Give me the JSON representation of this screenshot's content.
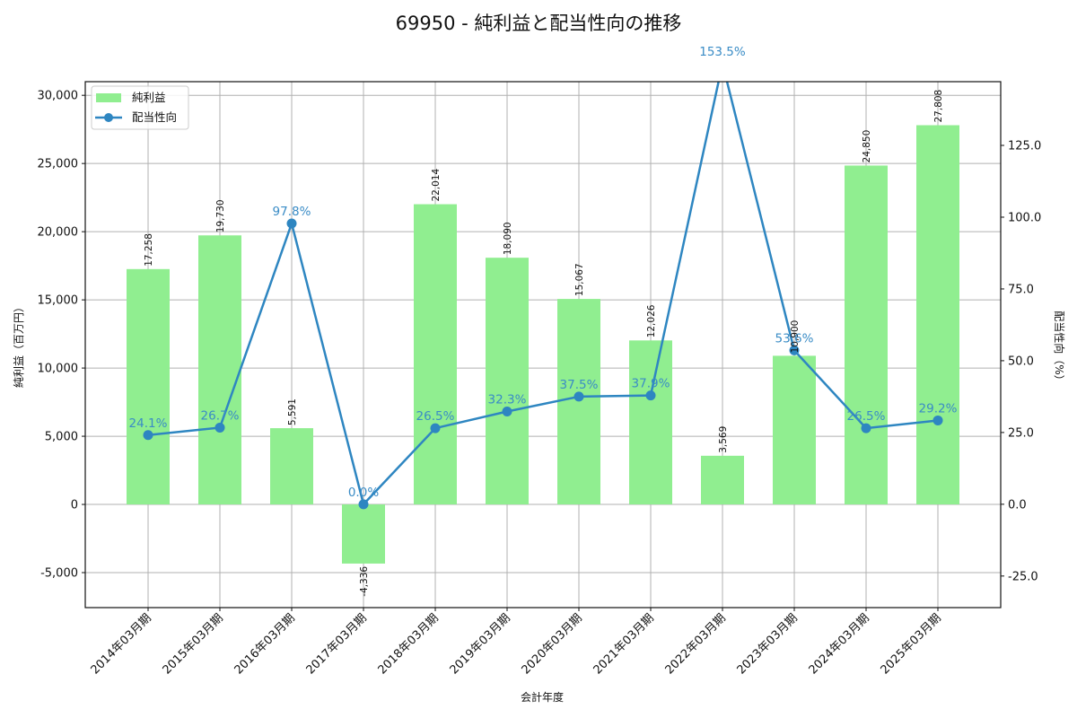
{
  "chart_data": {
    "type": "bar+line",
    "title": "69950 - 純利益と配当性向の推移",
    "xlabel": "会計年度",
    "ylabel_left": "純利益（百万円）",
    "ylabel_right": "配当性向（%）",
    "categories": [
      "2014年03月期",
      "2015年03月期",
      "2016年03月期",
      "2017年03月期",
      "2018年03月期",
      "2019年03月期",
      "2020年03月期",
      "2021年03月期",
      "2022年03月期",
      "2023年03月期",
      "2024年03月期",
      "2025年03月期"
    ],
    "series": [
      {
        "name": "純利益",
        "type": "bar",
        "axis": "left",
        "color": "#90ee90",
        "values": [
          17258,
          19730,
          5591,
          -4336,
          22014,
          18090,
          15067,
          12026,
          3569,
          10900,
          24850,
          27808
        ],
        "labels": [
          "17,258",
          "19,730",
          "5,591",
          "-4,336",
          "22,014",
          "18,090",
          "15,067",
          "12,026",
          "3,569",
          "10,900",
          "24,850",
          "27,808"
        ]
      },
      {
        "name": "配当性向",
        "type": "line",
        "axis": "right",
        "color": "#2e86c1",
        "values": [
          24.1,
          26.7,
          97.8,
          0.0,
          26.5,
          32.3,
          37.5,
          37.9,
          153.5,
          53.6,
          26.5,
          29.2
        ],
        "labels": [
          "24.1%",
          "26.7%",
          "97.8%",
          "0.0%",
          "26.5%",
          "32.3%",
          "37.5%",
          "37.9%",
          "153.5%",
          "53.6%",
          "26.5%",
          "29.2%"
        ]
      }
    ],
    "ylim_left": [
      -7566,
      31000
    ],
    "ylim_right": [
      -36.0,
      147.2
    ],
    "yticks_left": [
      -5000,
      0,
      5000,
      10000,
      15000,
      20000,
      25000,
      30000
    ],
    "yticks_left_labels": [
      "-5,000",
      "0",
      "5,000",
      "10,000",
      "15,000",
      "20,000",
      "25,000",
      "30,000"
    ],
    "yticks_right": [
      -25,
      0,
      25,
      50,
      75,
      100,
      125
    ],
    "yticks_right_labels": [
      "-25.0",
      "0.0",
      "25.0",
      "50.0",
      "75.0",
      "100.0",
      "125.0"
    ],
    "grid": true,
    "legend_position": "upper left"
  }
}
